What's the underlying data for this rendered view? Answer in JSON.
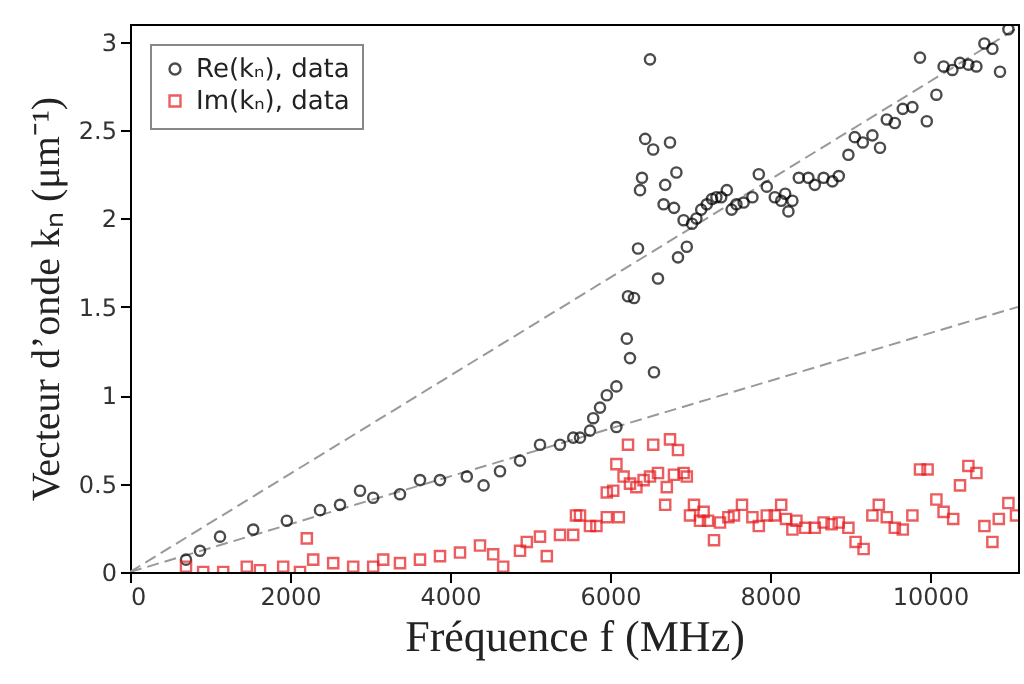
{
  "chart_data": {
    "type": "scatter",
    "xlabel": "Fréquence f (MHz)",
    "ylabel": "Vecteur d’onde kₙ (μm⁻¹)",
    "xlim": [
      0,
      11100
    ],
    "ylim": [
      0,
      3.1
    ],
    "xticks": [
      0,
      2000,
      4000,
      6000,
      8000,
      10000
    ],
    "yticks": [
      0,
      0.5,
      1,
      1.5,
      2,
      2.5,
      3
    ],
    "grid": false,
    "legend": "top left",
    "series": [
      {
        "name": "Re(kₙ), data",
        "color": "#000000",
        "marker": "circle",
        "x": [
          700,
          875,
          1125,
          1540,
          1960,
          2375,
          2625,
          2875,
          3040,
          3375,
          3625,
          3875,
          4210,
          4420,
          4625,
          4875,
          5125,
          5375,
          5540,
          5625,
          5750,
          5790,
          5875,
          5960,
          6080,
          6080,
          6210,
          6250,
          6225,
          6300,
          6350,
          6375,
          6400,
          6440,
          6500,
          6540,
          6550,
          6600,
          6670,
          6690,
          6750,
          6800,
          6830,
          6850,
          6920,
          6960,
          7025,
          7080,
          7140,
          7210,
          7275,
          7330,
          7390,
          7460,
          7520,
          7580,
          7670,
          7780,
          7860,
          7960,
          8060,
          8140,
          8190,
          8230,
          8280,
          8360,
          8480,
          8560,
          8670,
          8780,
          8860,
          8980,
          9060,
          9160,
          9280,
          9375,
          9460,
          9560,
          9660,
          9780,
          9875,
          9960,
          10080,
          10170,
          10280,
          10375,
          10480,
          10580,
          10680,
          10780,
          10875,
          10980
        ],
        "values": [
          0.07,
          0.12,
          0.2,
          0.24,
          0.29,
          0.35,
          0.38,
          0.46,
          0.42,
          0.44,
          0.52,
          0.52,
          0.54,
          0.49,
          0.57,
          0.63,
          0.72,
          0.72,
          0.76,
          0.76,
          0.8,
          0.87,
          0.93,
          1.0,
          1.05,
          0.82,
          1.32,
          1.21,
          1.56,
          1.55,
          1.83,
          2.16,
          2.23,
          2.45,
          2.9,
          2.39,
          1.13,
          1.66,
          2.08,
          2.19,
          2.43,
          2.06,
          2.26,
          1.78,
          1.99,
          1.84,
          1.97,
          2.0,
          2.05,
          2.08,
          2.11,
          2.12,
          2.12,
          2.16,
          2.05,
          2.08,
          2.09,
          2.12,
          2.25,
          2.18,
          2.12,
          2.1,
          2.14,
          2.04,
          2.1,
          2.23,
          2.23,
          2.19,
          2.23,
          2.21,
          2.24,
          2.36,
          2.46,
          2.43,
          2.47,
          2.4,
          2.56,
          2.54,
          2.62,
          2.63,
          2.91,
          2.55,
          2.7,
          2.86,
          2.84,
          2.88,
          2.87,
          2.86,
          2.99,
          2.96,
          2.83,
          3.07
        ]
      },
      {
        "name": "Im(kₙ), data",
        "color": "#e41a1c",
        "marker": "square",
        "x": [
          700,
          915,
          1165,
          1460,
          1625,
          1915,
          2125,
          2210,
          2290,
          2540,
          2790,
          3040,
          3165,
          3375,
          3625,
          3875,
          4125,
          4375,
          4540,
          4665,
          4875,
          4960,
          5125,
          5210,
          5375,
          5575,
          5540,
          5625,
          5750,
          5830,
          5960,
          5960,
          6040,
          6110,
          6080,
          6170,
          6225,
          6250,
          6330,
          6420,
          6500,
          6540,
          6600,
          6690,
          6710,
          6750,
          6800,
          6850,
          6920,
          6960,
          7000,
          7050,
          7125,
          7170,
          7225,
          7300,
          7375,
          7480,
          7550,
          7650,
          7780,
          7860,
          7960,
          8060,
          8140,
          8200,
          8280,
          8330,
          8440,
          8560,
          8670,
          8770,
          8860,
          8980,
          9070,
          9170,
          9280,
          9360,
          9460,
          9560,
          9660,
          9780,
          9875,
          9970,
          10080,
          10170,
          10290,
          10375,
          10480,
          10580,
          10680,
          10780,
          10860,
          10980,
          11075
        ],
        "values": [
          0.03,
          0.0,
          0.0,
          0.03,
          0.01,
          0.03,
          0.0,
          0.19,
          0.07,
          0.05,
          0.03,
          0.03,
          0.07,
          0.05,
          0.07,
          0.09,
          0.11,
          0.15,
          0.1,
          0.03,
          0.12,
          0.17,
          0.2,
          0.09,
          0.21,
          0.32,
          0.21,
          0.32,
          0.26,
          0.26,
          0.31,
          0.45,
          0.46,
          0.31,
          0.61,
          0.54,
          0.72,
          0.5,
          0.48,
          0.52,
          0.54,
          0.72,
          0.56,
          0.38,
          0.48,
          0.75,
          0.55,
          0.69,
          0.56,
          0.54,
          0.32,
          0.38,
          0.29,
          0.34,
          0.29,
          0.18,
          0.28,
          0.31,
          0.32,
          0.38,
          0.31,
          0.26,
          0.32,
          0.32,
          0.38,
          0.3,
          0.24,
          0.29,
          0.25,
          0.25,
          0.28,
          0.27,
          0.28,
          0.25,
          0.17,
          0.13,
          0.32,
          0.38,
          0.31,
          0.25,
          0.24,
          0.32,
          0.58,
          0.58,
          0.41,
          0.34,
          0.3,
          0.49,
          0.6,
          0.56,
          0.26,
          0.17,
          0.3,
          0.39,
          0.32
        ]
      },
      {
        "type": "line",
        "color": "#999999",
        "marker": "none",
        "line_style": "dashed",
        "x": [
          0,
          11100
        ],
        "values": [
          0,
          3.08
        ]
      },
      {
        "type": "line",
        "color": "#999999",
        "marker": "none",
        "line_style": "dashed",
        "x": [
          0,
          11100
        ],
        "values": [
          0,
          1.5
        ]
      }
    ]
  }
}
